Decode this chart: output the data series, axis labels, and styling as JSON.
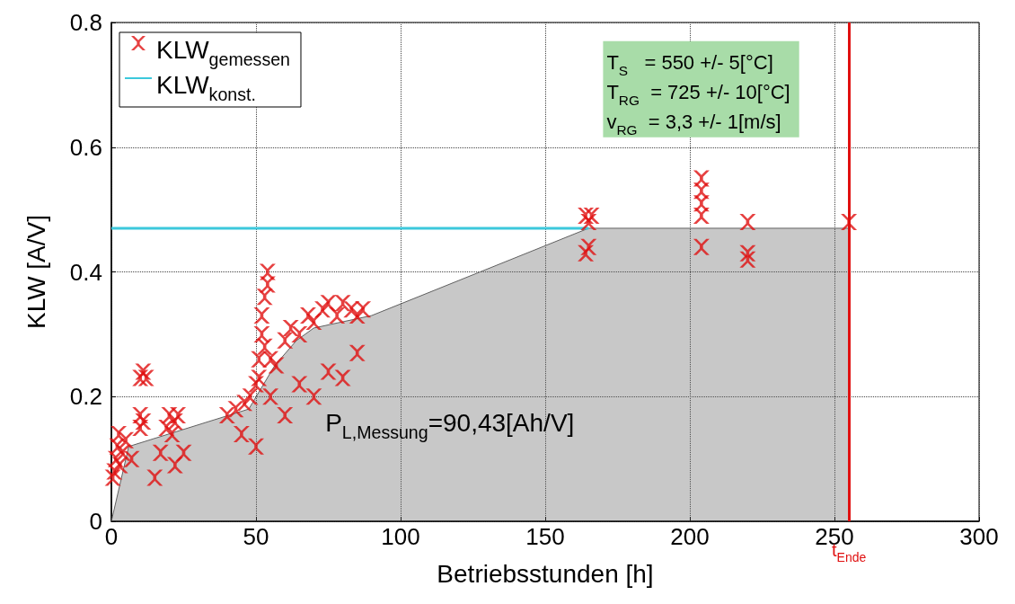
{
  "chart_data": {
    "type": "scatter",
    "xlabel": "Betriebsstunden [h]",
    "ylabel": "KLW [A/V]",
    "xlim": [
      0,
      300
    ],
    "xticks": [
      0,
      50,
      100,
      150,
      200,
      250,
      300
    ],
    "ylim": [
      0,
      0.8
    ],
    "yticks": [
      0,
      0.2,
      0.4,
      0.6,
      0.8
    ],
    "grid": true,
    "legend": "top left",
    "series": [
      {
        "type": "area",
        "color": "#606060",
        "x": [
          0,
          6,
          47.5,
          56.5,
          64,
          70,
          90,
          165,
          255
        ],
        "values": [
          0,
          0.12,
          0.18,
          0.25,
          0.29,
          0.31,
          0.33,
          0.47,
          0.47
        ]
      },
      {
        "type": "line",
        "name": "KLW$_{konst.}$",
        "color": "#3cc8dc",
        "marker": "none",
        "x": [
          0,
          165
        ],
        "values": [
          0.47,
          0.47
        ]
      },
      {
        "name": "KLW$_{gemessen}$",
        "color": "#e01010",
        "marker": "cross",
        "x": [
          0.5,
          1,
          1.5,
          2,
          2.5,
          3,
          4,
          5,
          7,
          10,
          10,
          11,
          10,
          11,
          12,
          15,
          17,
          19,
          20,
          21,
          22,
          23,
          22,
          25,
          40,
          43,
          45,
          46,
          48,
          50,
          50,
          51,
          51,
          52,
          52,
          53,
          53,
          54,
          54,
          55,
          55,
          57,
          60,
          60,
          62,
          65,
          65,
          68,
          70,
          70,
          73,
          75,
          75,
          78,
          80,
          80,
          83,
          85,
          85,
          87,
          164,
          165,
          166,
          165,
          164,
          204,
          204,
          204,
          204,
          204,
          220,
          220,
          220,
          255
        ],
        "values": [
          0.07,
          0.08,
          0.1,
          0.12,
          0.14,
          0.09,
          0.11,
          0.13,
          0.1,
          0.15,
          0.17,
          0.16,
          0.23,
          0.24,
          0.23,
          0.07,
          0.11,
          0.15,
          0.17,
          0.14,
          0.16,
          0.17,
          0.09,
          0.11,
          0.17,
          0.18,
          0.14,
          0.19,
          0.2,
          0.22,
          0.12,
          0.26,
          0.23,
          0.3,
          0.33,
          0.36,
          0.28,
          0.38,
          0.4,
          0.26,
          0.2,
          0.25,
          0.29,
          0.17,
          0.31,
          0.3,
          0.22,
          0.33,
          0.32,
          0.2,
          0.34,
          0.35,
          0.24,
          0.33,
          0.35,
          0.23,
          0.34,
          0.33,
          0.27,
          0.34,
          0.49,
          0.48,
          0.49,
          0.44,
          0.43,
          0.55,
          0.53,
          0.51,
          0.49,
          0.44,
          0.48,
          0.43,
          0.42,
          0.48
        ]
      }
    ],
    "ref_lines": [
      {
        "axis": "x",
        "value": 255,
        "label": "t$_{Ende}$",
        "color": "#e01010"
      }
    ],
    "annotations": [
      "P$_{L,Messung}$=90,43[Ah/V]",
      "T$_{S}$   = 550 +/- 5[°C]",
      "T$_{RG}$  = 725 +/- 10[°C]",
      "v$_{RG}$  = 3,3 +/- 1[m/s]"
    ]
  }
}
